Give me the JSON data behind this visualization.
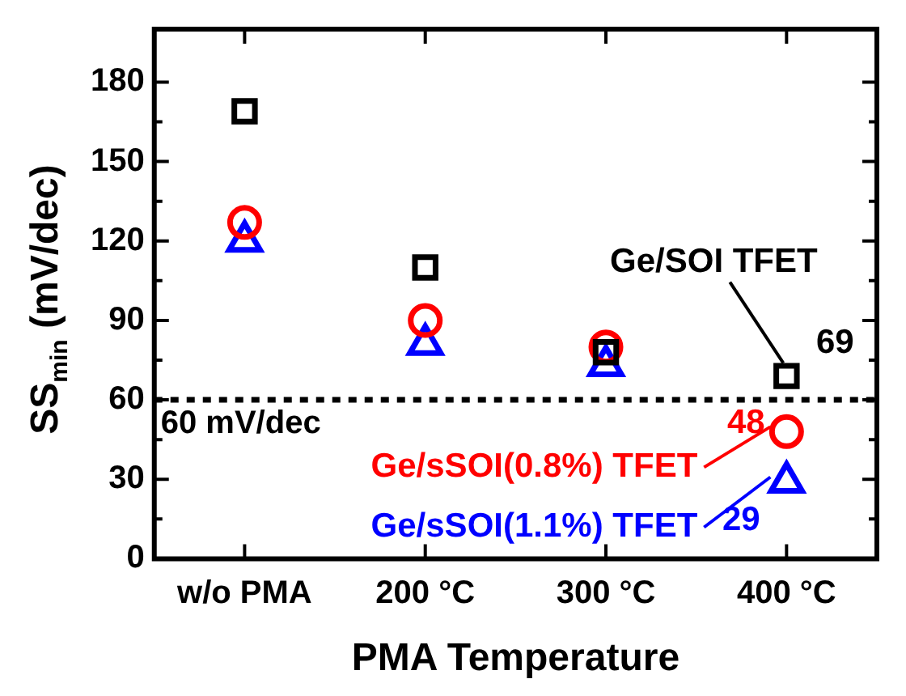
{
  "chart_data": {
    "type": "scatter",
    "xlabel": "PMA Temperature",
    "ylabel": "SS$_{min}$ (mV/dec)",
    "categories": [
      "w/o PMA",
      "200 °C",
      "300 °C",
      "400 °C"
    ],
    "ylim": [
      0,
      200
    ],
    "yticks": [
      0,
      30,
      60,
      90,
      120,
      150,
      180
    ],
    "grid": false,
    "legend": "right",
    "series": [
      {
        "name": "Ge/SOI TFET",
        "color": "#000000",
        "marker": "square",
        "values": [
          169,
          110,
          78,
          69
        ],
        "value_labels": [
          null,
          null,
          null,
          "69"
        ]
      },
      {
        "name": "Ge/sSOI(0.8%) TFET",
        "color": "#ff0000",
        "marker": "circle",
        "values": [
          127,
          90,
          80,
          48
        ],
        "value_labels": [
          null,
          null,
          null,
          "48"
        ]
      },
      {
        "name": "Ge/sSOI(1.1%) TFET",
        "color": "#0000ff",
        "marker": "triangle",
        "values": [
          120,
          81,
          73,
          29
        ],
        "value_labels": [
          null,
          null,
          null,
          "29"
        ]
      }
    ],
    "ref_lines": [
      {
        "axis": "y",
        "value": 60,
        "label": "60 mV/dec",
        "color": "#000000",
        "line_style": "dashed"
      }
    ]
  }
}
